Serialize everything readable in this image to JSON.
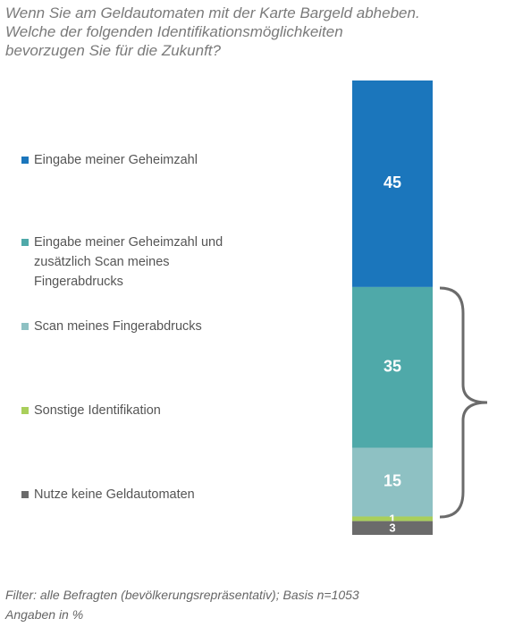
{
  "chart_data": {
    "type": "stacked-bar",
    "title": "Wenn Sie am Geldautomaten mit der Karte Bargeld abheben.",
    "subtitle": "Welche der folgenden Identifikationsmöglichkeiten bevorzugen Sie für die Zukunft?",
    "series": [
      {
        "name": "Eingabe meiner Geheimzahl",
        "color": "#1b76bc",
        "values": [
          45
        ]
      },
      {
        "name": "Eingabe meiner Geheimzahl und zusätzlich Scan meines Fingerabdrucks",
        "color": "#4fa9a9",
        "values": [
          35
        ]
      },
      {
        "name": "Scan meines Fingerabdrucks",
        "color": "#8ec1c3",
        "values": [
          15
        ]
      },
      {
        "name": "Sonstige Identifikation",
        "color": "#a9cf5b",
        "values": [
          1
        ]
      },
      {
        "name": "Nutze keine Geldautomaten",
        "color": "#6b6b6b",
        "values": [
          3
        ]
      }
    ],
    "footnote": "Filter: alle Befragten (bevölkerungsrepräsentativ); Basis n=1053",
    "unit_note": "Angaben in %"
  }
}
